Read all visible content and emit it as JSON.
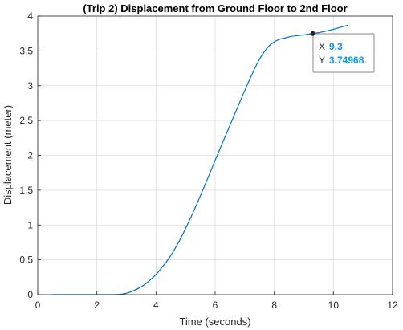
{
  "chart_data": {
    "type": "line",
    "title": "(Trip 2) Displacement from Ground Floor to 2nd Floor",
    "xlabel": "Time (seconds)",
    "ylabel": "Displacement (meter)",
    "xlim": [
      0,
      12
    ],
    "ylim": [
      0,
      4
    ],
    "xticks": [
      "0",
      "2",
      "4",
      "6",
      "8",
      "10",
      "12"
    ],
    "yticks": [
      "0",
      "0.5",
      "1",
      "1.5",
      "2",
      "2.5",
      "3",
      "3.5",
      "4"
    ],
    "grid": true,
    "line_color": "#0072BD",
    "series": [
      {
        "x": [
          0.5,
          1.0,
          1.5,
          2.0,
          2.5,
          2.8,
          3.0,
          3.2,
          3.4,
          3.6,
          3.8,
          4.0,
          4.2,
          4.4,
          4.6,
          4.8,
          5.0,
          5.2,
          5.4,
          5.6,
          5.8,
          6.0,
          6.2,
          6.4,
          6.6,
          6.8,
          7.0,
          7.2,
          7.4,
          7.6,
          7.8,
          8.0,
          8.2,
          8.4,
          8.6,
          8.8,
          9.0,
          9.3,
          9.6,
          10.0,
          10.5
        ],
        "y": [
          0,
          0,
          0,
          0,
          0,
          0.005,
          0.02,
          0.05,
          0.09,
          0.14,
          0.21,
          0.29,
          0.39,
          0.5,
          0.63,
          0.78,
          0.95,
          1.13,
          1.32,
          1.52,
          1.72,
          1.93,
          2.13,
          2.33,
          2.53,
          2.73,
          2.93,
          3.12,
          3.3,
          3.45,
          3.56,
          3.63,
          3.67,
          3.69,
          3.71,
          3.72,
          3.73,
          3.74968,
          3.77,
          3.81,
          3.87
        ]
      }
    ],
    "datatip": {
      "x_key": "X",
      "x_value": "9.3",
      "y_key": "Y",
      "y_value": "3.74968",
      "point": [
        9.3,
        3.74968
      ],
      "value_color": "#0E94F0"
    }
  }
}
